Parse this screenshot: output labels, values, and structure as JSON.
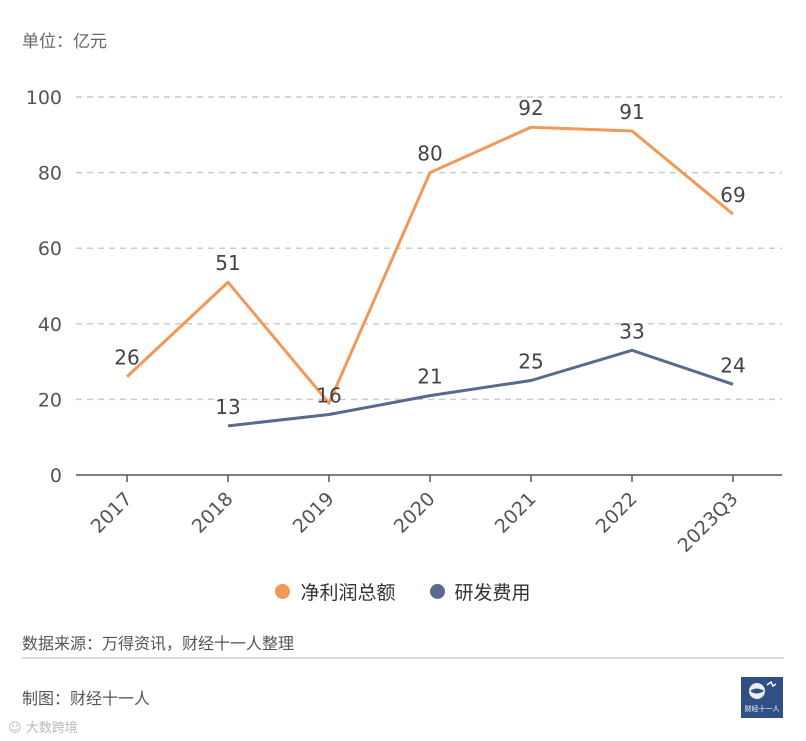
{
  "unit_label": "单位：亿元",
  "source": "数据来源：万得资讯，财经十一人整理",
  "maker": "制图：财经十一人",
  "logo_text": "财经十一人",
  "watermark": "大数跨境",
  "colors": {
    "net_profit": "#f0995a",
    "rd": "#5a6a8c",
    "grid": "#cccccc",
    "axis": "#555555"
  },
  "chart_data": {
    "type": "line",
    "categories": [
      "2017",
      "2018",
      "2019",
      "2020",
      "2021",
      "2022",
      "2023Q3"
    ],
    "series": [
      {
        "name": "净利润总额",
        "values": [
          26,
          51,
          19,
          80,
          92,
          91,
          69
        ],
        "labels": [
          "26",
          "51",
          "",
          "80",
          "92",
          "91",
          "69"
        ]
      },
      {
        "name": "研发费用",
        "values": [
          null,
          13,
          16,
          21,
          25,
          33,
          24
        ],
        "labels": [
          "",
          "13",
          "16",
          "21",
          "25",
          "33",
          "24"
        ]
      }
    ],
    "ylim": [
      0,
      100
    ],
    "yticks": [
      0,
      20,
      40,
      60,
      80,
      100
    ],
    "grid": true,
    "legend_position": "bottom"
  }
}
